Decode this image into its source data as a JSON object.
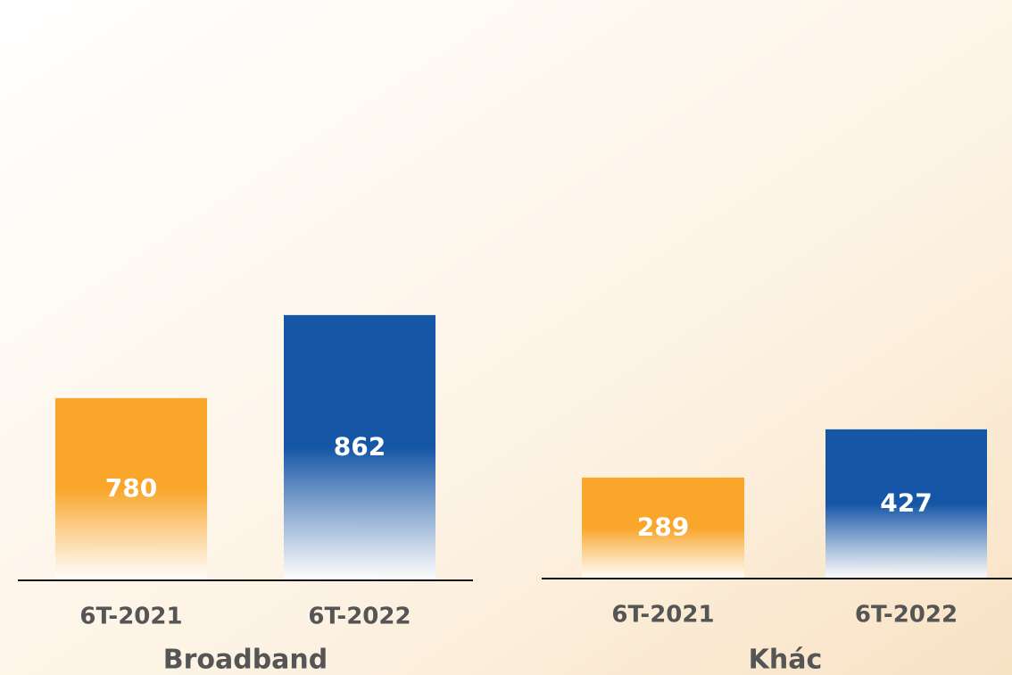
{
  "chart_data": [
    {
      "type": "bar",
      "title": "Broadband",
      "categories": [
        "6T-2021",
        "6T-2022"
      ],
      "values": [
        780,
        862
      ],
      "colors": [
        "#f9a62b",
        "#1656a6"
      ],
      "ylim": [
        600,
        1085
      ]
    },
    {
      "type": "bar",
      "title": "Khác",
      "categories": [
        "6T-2021",
        "6T-2022"
      ],
      "values": [
        289,
        427
      ],
      "colors": [
        "#f9a62b",
        "#1656a6"
      ],
      "ylim": [
        0,
        1400
      ]
    }
  ]
}
